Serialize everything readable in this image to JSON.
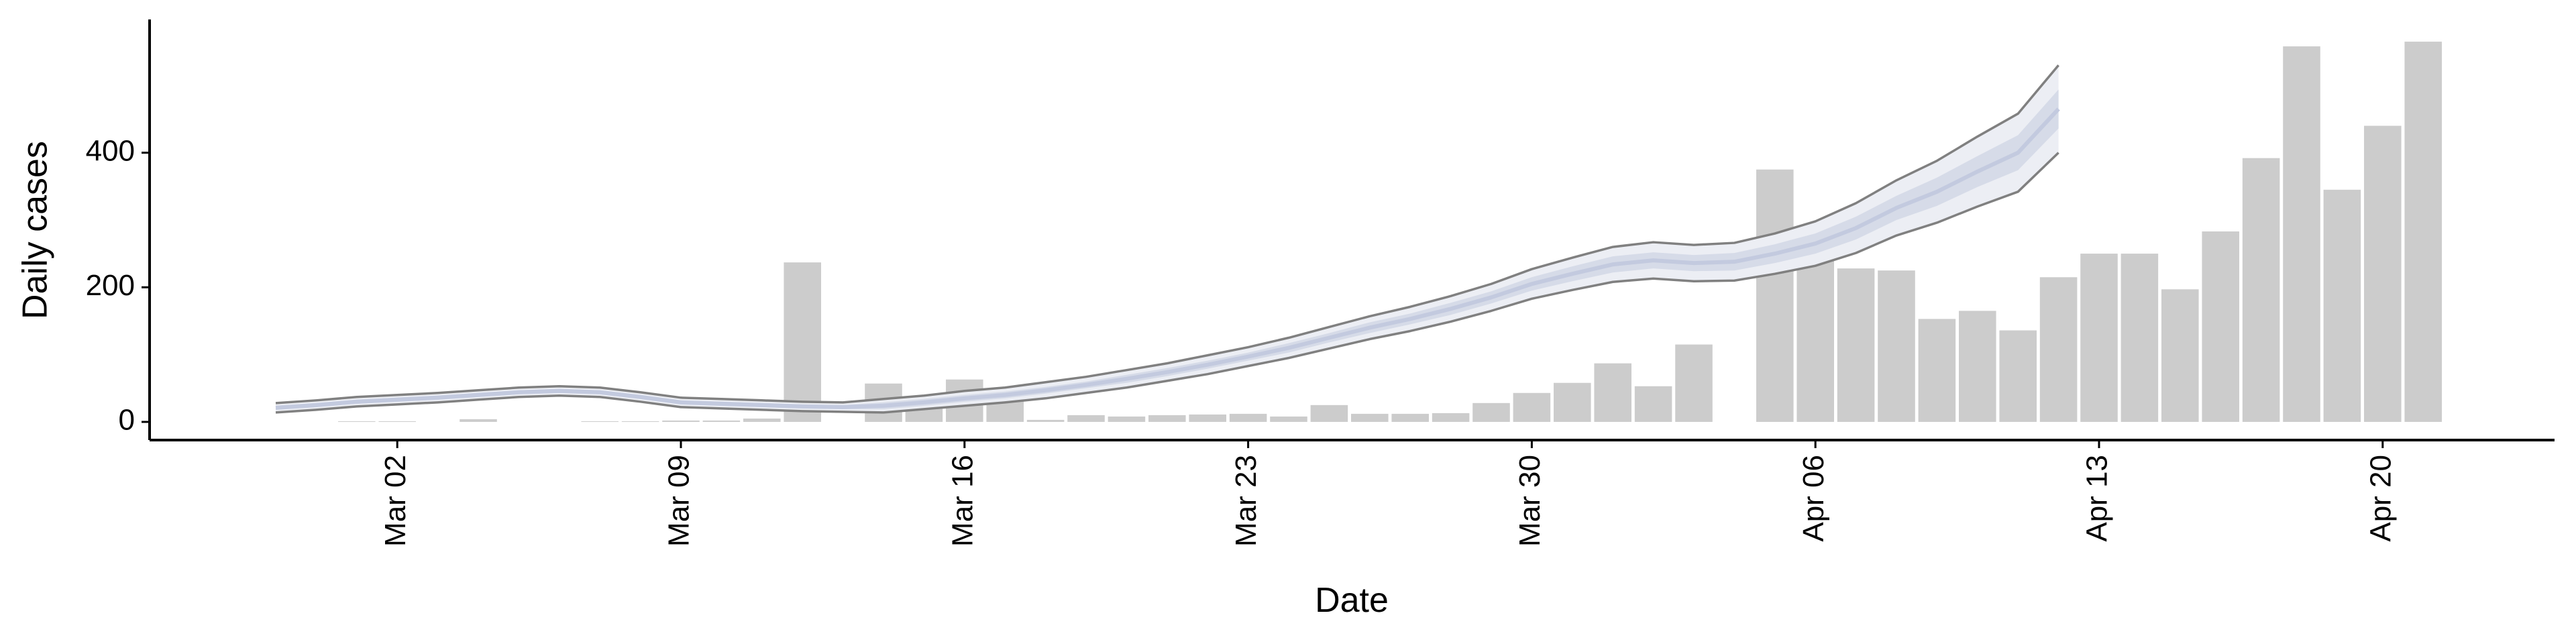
{
  "chart_data": {
    "type": "bar-band",
    "y_label": "Daily cases",
    "x_label": "Date",
    "x": [
      "Feb 28",
      "Feb 29",
      "Mar 01",
      "Mar 02",
      "Mar 03",
      "Mar 04",
      "Mar 05",
      "Mar 06",
      "Mar 07",
      "Mar 08",
      "Mar 09",
      "Mar 10",
      "Mar 11",
      "Mar 12",
      "Mar 13",
      "Mar 14",
      "Mar 15",
      "Mar 16",
      "Mar 17",
      "Mar 18",
      "Mar 19",
      "Mar 20",
      "Mar 21",
      "Mar 22",
      "Mar 23",
      "Mar 24",
      "Mar 25",
      "Mar 26",
      "Mar 27",
      "Mar 28",
      "Mar 29",
      "Mar 30",
      "Mar 31",
      "Apr 01",
      "Apr 02",
      "Apr 03",
      "Apr 04",
      "Apr 05",
      "Apr 06",
      "Apr 07",
      "Apr 08",
      "Apr 09",
      "Apr 10",
      "Apr 11",
      "Apr 12",
      "Apr 13",
      "Apr 14",
      "Apr 15",
      "Apr 16",
      "Apr 17",
      "Apr 18",
      "Apr 19",
      "Apr 20",
      "Apr 21"
    ],
    "values": [
      null,
      null,
      1,
      1,
      null,
      4,
      null,
      null,
      1,
      1,
      2,
      2,
      5,
      237,
      null,
      57,
      20,
      63,
      40,
      3,
      10,
      8,
      10,
      11,
      12,
      8,
      25,
      12,
      12,
      13,
      28,
      43,
      58,
      87,
      53,
      115,
      null,
      375,
      278,
      228,
      225,
      153,
      165,
      136,
      215,
      250,
      250,
      197,
      283,
      392,
      558,
      345,
      440,
      565
    ],
    "bar_color": "#cccccc",
    "estimate": {
      "median": [
        21,
        25,
        30,
        33,
        36,
        40,
        44,
        46,
        44,
        37,
        29,
        27,
        25,
        23,
        22,
        24,
        29,
        35,
        40,
        47,
        55,
        64,
        74,
        85,
        97,
        110,
        125,
        140,
        153,
        168,
        185,
        205,
        220,
        234,
        240,
        236,
        238,
        250,
        265,
        288,
        318,
        342,
        372,
        400,
        465,
        null,
        null,
        null,
        null,
        null,
        null,
        null,
        null,
        null
      ],
      "upper_90": [
        28,
        32,
        37,
        40,
        43,
        47,
        51,
        53,
        51,
        44,
        36,
        34,
        32,
        30,
        29,
        34,
        39,
        46,
        51,
        59,
        67,
        77,
        87,
        99,
        111,
        125,
        141,
        157,
        171,
        187,
        205,
        227,
        244,
        260,
        267,
        263,
        266,
        280,
        298,
        325,
        359,
        388,
        424,
        458,
        530,
        null,
        null,
        null,
        null,
        null,
        null,
        null,
        null,
        null
      ],
      "lower_90": [
        14,
        18,
        23,
        26,
        29,
        33,
        37,
        39,
        37,
        30,
        22,
        20,
        18,
        16,
        15,
        14,
        19,
        24,
        29,
        35,
        43,
        51,
        61,
        71,
        83,
        95,
        109,
        123,
        135,
        149,
        165,
        183,
        196,
        208,
        213,
        209,
        210,
        220,
        232,
        251,
        277,
        296,
        320,
        342,
        400,
        null,
        null,
        null,
        null,
        null,
        null,
        null,
        null,
        null
      ],
      "upper_50": [
        24,
        28,
        33,
        36,
        39,
        43,
        47,
        49,
        47,
        40,
        32,
        30,
        28,
        26,
        25,
        29,
        34,
        40,
        45,
        52,
        60,
        70,
        80,
        91,
        103,
        117,
        132,
        148,
        161,
        177,
        194,
        215,
        231,
        246,
        252,
        248,
        251,
        264,
        280,
        305,
        336,
        363,
        395,
        426,
        494,
        null,
        null,
        null,
        null,
        null,
        null,
        null,
        null,
        null
      ],
      "lower_50": [
        18,
        22,
        27,
        30,
        33,
        37,
        41,
        43,
        41,
        34,
        26,
        24,
        22,
        20,
        19,
        19,
        24,
        30,
        35,
        42,
        50,
        58,
        68,
        79,
        91,
        103,
        118,
        132,
        145,
        159,
        176,
        195,
        209,
        222,
        228,
        224,
        225,
        236,
        250,
        271,
        300,
        321,
        349,
        374,
        436,
        null,
        null,
        null,
        null,
        null,
        null,
        null,
        null,
        null
      ],
      "band_90_color": "#eceef4",
      "band_50_color": "#d6dbe8",
      "median_color": "#c3cadf",
      "edge_color": "#808080"
    },
    "ylim": [
      -27,
      598
    ],
    "yticks": [
      0,
      200,
      400
    ],
    "xticks": [
      "Mar 02",
      "Mar 09",
      "Mar 16",
      "Mar 23",
      "Mar 30",
      "Apr 06",
      "Apr 13",
      "Apr 20"
    ]
  }
}
